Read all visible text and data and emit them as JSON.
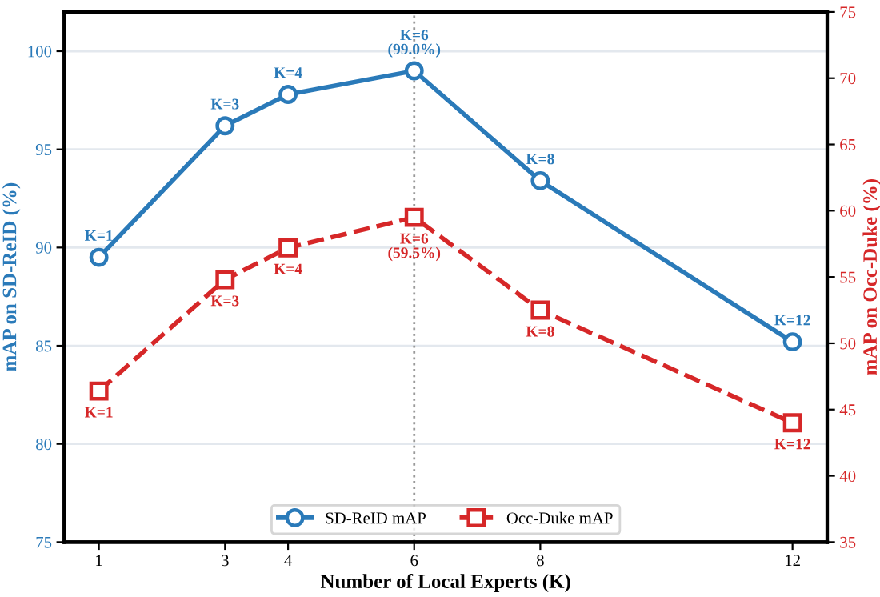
{
  "chart_data": {
    "type": "line",
    "xlabel": "Number of Local Experts (K)",
    "ylabel": "mAP on SD-ReID (%)",
    "y2label": "mAP on Occ-Duke (%)",
    "x": [
      1,
      3,
      4,
      6,
      8,
      12
    ],
    "xlim": [
      0.45,
      12.55
    ],
    "xticks": [
      1,
      3,
      4,
      6,
      8,
      12
    ],
    "ylim": [
      75,
      102
    ],
    "yticks": [
      75,
      80,
      85,
      90,
      95,
      100
    ],
    "y2lim": [
      35,
      75
    ],
    "y2ticks": [
      35,
      40,
      45,
      50,
      55,
      60,
      65,
      70,
      75
    ],
    "series": [
      {
        "name": "SD-ReID mAP",
        "color": "#2a7ab9",
        "values": [
          89.5,
          96.2,
          97.8,
          99.0,
          93.4,
          85.2
        ],
        "marker": "circle",
        "line_style": "solid"
      },
      {
        "name": "Occ-Duke mAP",
        "color": "#d62728",
        "axis": "y2",
        "values": [
          46.4,
          54.8,
          57.2,
          59.5,
          52.5,
          44.0
        ],
        "marker": "square",
        "line_style": "dashed"
      }
    ],
    "annotations": [
      {
        "text": "K=1",
        "x": 1,
        "y": 89.5
      },
      {
        "text": "K=3",
        "x": 3,
        "y": 96.2
      },
      {
        "text": "K=4",
        "x": 4,
        "y": 97.8
      },
      {
        "text": "K=6\n(99.0%)",
        "x": 6,
        "y": 99.0
      },
      {
        "text": "K=8",
        "x": 8,
        "y": 93.4
      },
      {
        "text": "K=12",
        "x": 12,
        "y": 85.2
      },
      {
        "text": "K=1",
        "x": 1,
        "y": 82.7
      },
      {
        "text": "K=3",
        "x": 3,
        "y": 88.37
      },
      {
        "text": "K=4",
        "x": 4,
        "y": 89.99
      },
      {
        "text": "K=6\n(59.5%)",
        "x": 6,
        "y": 91.54
      },
      {
        "text": "K=8",
        "x": 8,
        "y": 86.81
      },
      {
        "text": "K=12",
        "x": 12,
        "y": 81.08
      }
    ],
    "ref_lines": [
      {
        "axis": "x",
        "value": 6,
        "color": "#999999",
        "line_style": "dotted"
      }
    ],
    "grid": "y",
    "legend": "bottom"
  }
}
